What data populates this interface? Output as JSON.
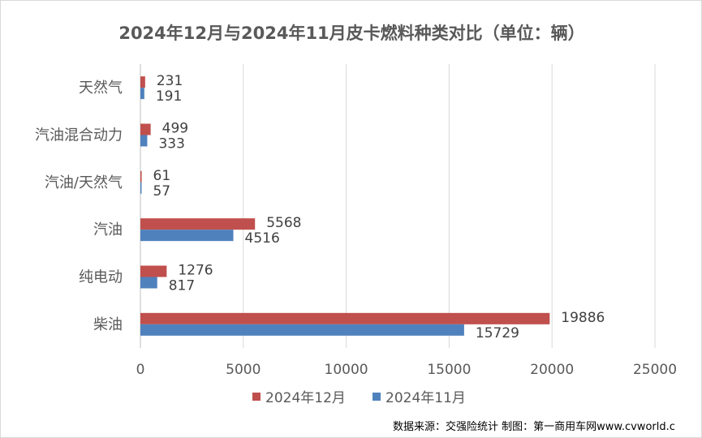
{
  "chart_data": {
    "type": "bar",
    "orientation": "horizontal",
    "title": "2024年12月与2024年11月皮卡燃料种类对比（单位：辆）",
    "categories": [
      "天然气",
      "汽油混合动力",
      "汽油/天然气",
      "汽油",
      "纯电动",
      "柴油"
    ],
    "series": [
      {
        "name": "2024年12月",
        "color": "#c0504d",
        "values": [
          231,
          499,
          61,
          5568,
          1276,
          19886
        ]
      },
      {
        "name": "2024年11月",
        "color": "#4f81bd",
        "values": [
          191,
          333,
          57,
          4516,
          817,
          15729
        ]
      }
    ],
    "xlim": [
      0,
      25000
    ],
    "xticks": [
      0,
      5000,
      10000,
      15000,
      20000,
      25000
    ],
    "grid": true,
    "legend": "bottom",
    "xlabel": "",
    "ylabel": ""
  },
  "source": "数据来源：交强险统计 制图：第一商用车网www.cvworld.c"
}
